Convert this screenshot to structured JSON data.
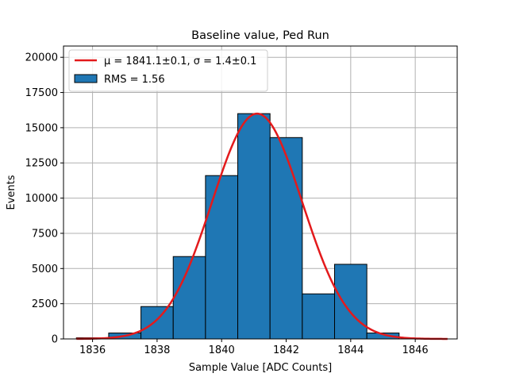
{
  "chart_data": {
    "type": "bar",
    "title": "Baseline value, Ped Run",
    "xlabel": "Sample Value [ADC Counts]",
    "ylabel": "Events",
    "xlim": [
      1835.1,
      1847.3
    ],
    "ylim": [
      0,
      20800
    ],
    "xticks": [
      1836,
      1838,
      1840,
      1842,
      1844,
      1846
    ],
    "yticks": [
      0,
      2500,
      5000,
      7500,
      10000,
      12500,
      15000,
      17500,
      20000
    ],
    "grid": true,
    "legend_position": "top-left",
    "series": [
      {
        "name": "RMS = 1.56",
        "kind": "histogram",
        "color": "#1f77b4",
        "edgecolor": "#000000",
        "bin_edges": [
          1835.5,
          1836.5,
          1837.5,
          1838.5,
          1839.5,
          1840.5,
          1841.5,
          1842.5,
          1843.5,
          1844.5,
          1845.5
        ],
        "counts": [
          80,
          420,
          2300,
          5850,
          11600,
          16000,
          14300,
          3200,
          5300,
          420
        ]
      },
      {
        "name": "μ = 1841.1±0.1, σ = 1.4±0.1",
        "kind": "gaussian-fit",
        "color": "#e31a1c",
        "mu": 1841.1,
        "sigma": 1.4,
        "amplitude": 16000,
        "x_range": [
          1835.5,
          1847.0
        ]
      }
    ]
  }
}
